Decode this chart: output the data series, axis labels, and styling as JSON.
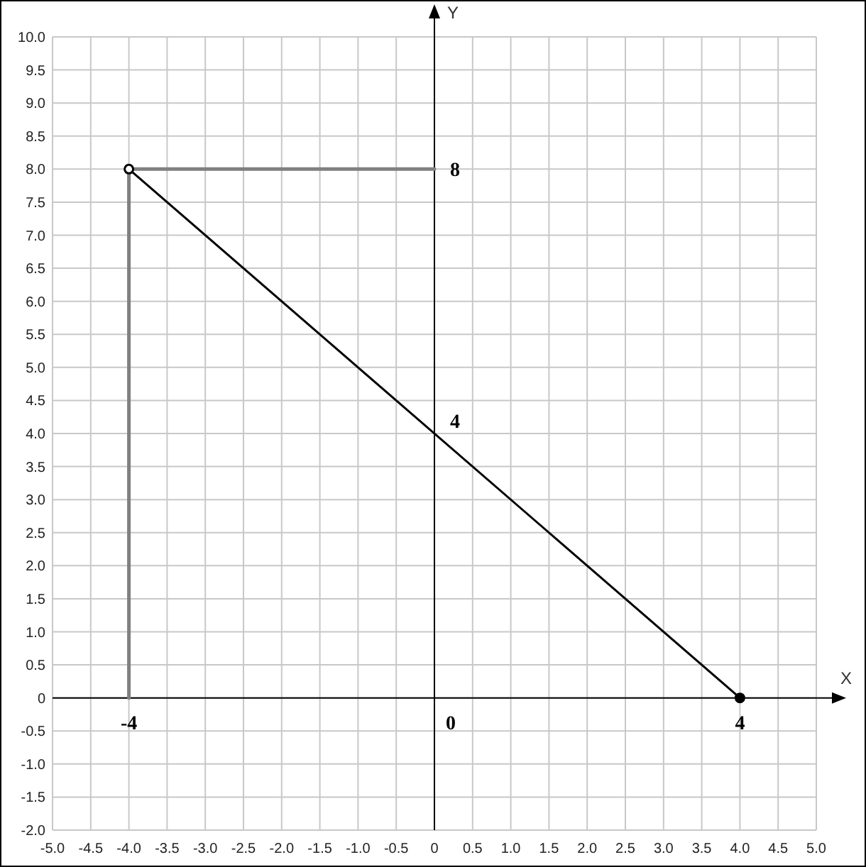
{
  "chart_data": {
    "type": "line",
    "xlabel": "X",
    "ylabel": "Y",
    "xlim": [
      -5,
      5
    ],
    "ylim": [
      -2,
      10
    ],
    "xticks": [
      {
        "value": -5,
        "label": "-5.0"
      },
      -4.5,
      {
        "value": -4,
        "label": "-4.0"
      },
      -3.5,
      {
        "value": -3,
        "label": "-3.0"
      },
      -2.5,
      {
        "value": -2,
        "label": "-2.0"
      },
      -1.5,
      {
        "value": -1,
        "label": "-1.0"
      },
      -0.5,
      0,
      0.5,
      {
        "value": 1,
        "label": "1.0"
      },
      1.5,
      {
        "value": 2,
        "label": "2.0"
      },
      2.5,
      {
        "value": 3,
        "label": "3.0"
      },
      3.5,
      {
        "value": 4,
        "label": "4.0"
      },
      4.5,
      {
        "value": 5,
        "label": "5.0"
      }
    ],
    "yticks": [
      {
        "value": -2,
        "label": "-2.0"
      },
      -1.5,
      {
        "value": -1,
        "label": "-1.0"
      },
      -0.5,
      0,
      0.5,
      {
        "value": 1,
        "label": "1.0"
      },
      1.5,
      {
        "value": 2,
        "label": "2.0"
      },
      2.5,
      {
        "value": 3,
        "label": "3.0"
      },
      3.5,
      {
        "value": 4,
        "label": "4.0"
      },
      4.5,
      {
        "value": 5,
        "label": "5.0"
      },
      5.5,
      {
        "value": 6,
        "label": "6.0"
      },
      6.5,
      {
        "value": 7,
        "label": "7.0"
      },
      7.5,
      {
        "value": 8,
        "label": "8.0"
      },
      8.5,
      {
        "value": 9,
        "label": "9.0"
      },
      9.5,
      {
        "value": 10,
        "label": "10.0"
      }
    ],
    "grid": true,
    "series": [
      {
        "color": "#808080",
        "x": [
          -4,
          -4,
          0
        ],
        "values": [
          0,
          8,
          8
        ],
        "marker": "none"
      },
      {
        "color": "#000000",
        "x": [
          -4,
          4
        ],
        "values": [
          8,
          0
        ],
        "marker": "circle"
      }
    ],
    "annotations": [
      {
        "text": "-4",
        "x": -4,
        "y": 0
      },
      "0",
      {
        "text": "4",
        "x": 4,
        "y": 0
      },
      {
        "text": "8",
        "x": 0,
        "y": 8
      },
      {
        "text": "4",
        "x": 0,
        "y": 4
      }
    ]
  }
}
